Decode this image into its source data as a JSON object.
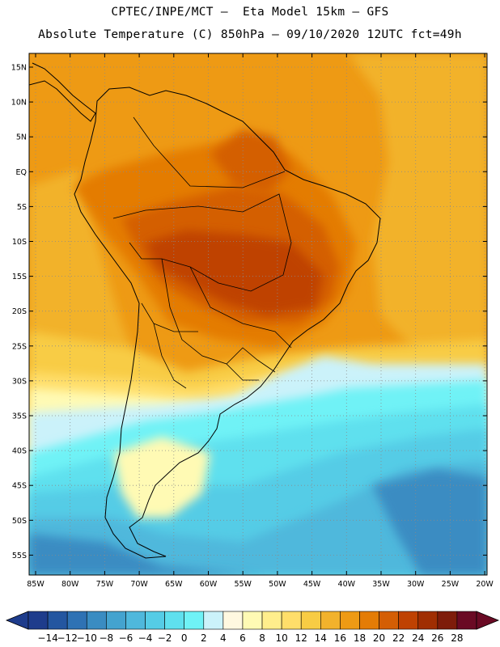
{
  "header": {
    "line1": "CPTEC/INPE/MCT –  Eta Model 15km – GFS",
    "line2": "Absolute Temperature (C) 850hPa – 09/10/2020 12UTC fct=49h"
  },
  "map": {
    "lat_labels": [
      "15N",
      "10N",
      "5N",
      "EQ",
      "5S",
      "10S",
      "15S",
      "20S",
      "25S",
      "30S",
      "35S",
      "40S",
      "45S",
      "50S",
      "55S"
    ],
    "lon_labels": [
      "85W",
      "80W",
      "75W",
      "70W",
      "65W",
      "60W",
      "55W",
      "50W",
      "45W",
      "40W",
      "35W",
      "30W",
      "25W",
      "20W"
    ]
  },
  "colorbar": {
    "labels": [
      "-14",
      "-12",
      "-10",
      "-8",
      "-6",
      "-4",
      "-2",
      "0",
      "2",
      "4",
      "6",
      "8",
      "10",
      "12",
      "14",
      "16",
      "18",
      "20",
      "22",
      "24",
      "26",
      "28"
    ],
    "colors": [
      "#1e3c8c",
      "#2456a0",
      "#2f72b4",
      "#3a8cc2",
      "#44a3cf",
      "#4fb8dc",
      "#55cce6",
      "#5fe0ee",
      "#6ff2f6",
      "#cbf2fa",
      "#fff8e0",
      "#fffab4",
      "#ffee8c",
      "#ffde6a",
      "#f8cc44",
      "#f2b22c",
      "#ee9a14",
      "#e47c06",
      "#d45e04",
      "#bf4202",
      "#a02e02",
      "#7e1c0a",
      "#6a0a24"
    ]
  }
}
